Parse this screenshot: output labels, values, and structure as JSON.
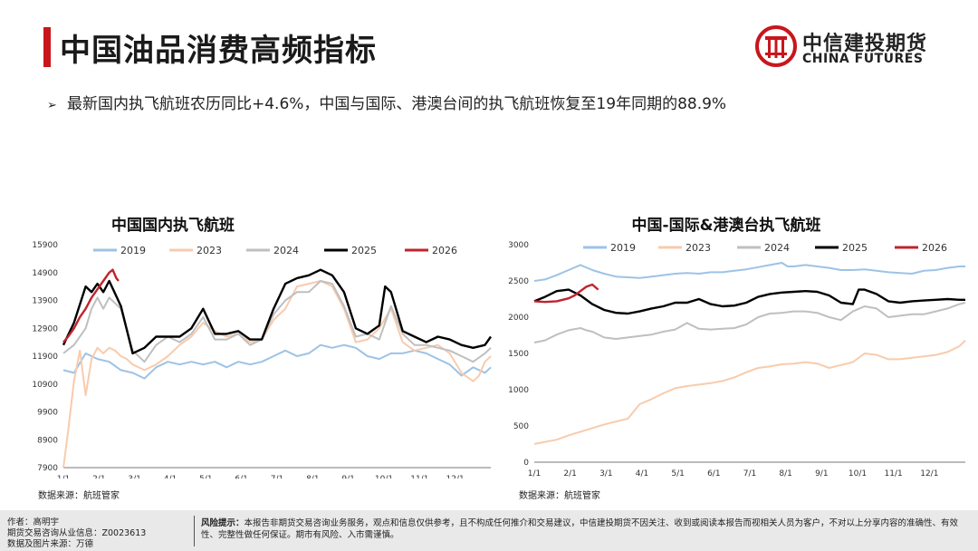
{
  "page": {
    "title": "中国油品消费高频指标",
    "bullet": "最新国内执飞航班农历同比+4.6%，中国与国际、港澳台间的执飞航班恢复至19年同期的88.9%"
  },
  "logo": {
    "cn": "中信建投期货",
    "en": "CHINA FUTURES"
  },
  "colors": {
    "accent": "#c8161d",
    "s2019": "#9dc3e6",
    "s2023": "#f8cbad",
    "s2024": "#bfbfbf",
    "s2025": "#000000",
    "s2026": "#c0232c"
  },
  "footer": {
    "author": "作者：高明宇",
    "license": "期货交易咨询从业信息：Z0023613",
    "source": "数据及图片来源：万德",
    "risk_label": "风险提示：",
    "risk_text": "本报告非期货交易咨询业务服务，观点和信息仅供参考，且不构成任何推介和交易建议，中信建投期货不因关注、收到或阅读本报告而视相关人员为客户，不对以上分享内容的准确性、有效性、完整性做任何保证。期市有风险、入市需谨慎。"
  },
  "chart_data": [
    {
      "type": "line",
      "title": "中国国内执飞航班",
      "source": "数据来源：航班管家",
      "ylim": [
        7900,
        15900
      ],
      "yticks": [
        "15900",
        "14900",
        "13900",
        "12900",
        "11900",
        "10900",
        "9900",
        "8900",
        "7900"
      ],
      "xticks": [
        "1/1",
        "2/1",
        "3/1",
        "4/1",
        "5/1",
        "6/1",
        "7/1",
        "8/1",
        "9/1",
        "10/1",
        "11/1",
        "12/1"
      ],
      "legend_position": "top",
      "series": [
        {
          "name": "2019",
          "x": [
            1,
            10,
            20,
            30,
            40,
            50,
            60,
            70,
            80,
            90,
            100,
            110,
            120,
            130,
            140,
            150,
            160,
            170,
            180,
            190,
            200,
            210,
            220,
            230,
            240,
            250,
            260,
            270,
            280,
            290,
            300,
            310,
            320,
            330,
            340,
            350,
            360,
            365
          ],
          "values": [
            11400,
            11300,
            12000,
            11800,
            11700,
            11400,
            11300,
            11100,
            11500,
            11700,
            11600,
            11700,
            11600,
            11700,
            11500,
            11700,
            11600,
            11700,
            11900,
            12100,
            11900,
            12000,
            12300,
            12200,
            12300,
            12200,
            11900,
            11800,
            12000,
            12000,
            12100,
            12000,
            11800,
            11600,
            11200,
            11500,
            11300,
            11500
          ]
        },
        {
          "name": "2023",
          "x": [
            1,
            5,
            10,
            15,
            20,
            25,
            30,
            35,
            40,
            45,
            50,
            55,
            60,
            70,
            80,
            90,
            100,
            110,
            120,
            130,
            140,
            150,
            160,
            170,
            180,
            190,
            200,
            210,
            220,
            230,
            240,
            250,
            260,
            270,
            280,
            290,
            300,
            310,
            320,
            330,
            340,
            350,
            355,
            360,
            365
          ],
          "values": [
            7900,
            9200,
            11000,
            12100,
            10500,
            11800,
            12200,
            12000,
            12200,
            12100,
            11900,
            11800,
            11600,
            11400,
            11600,
            11900,
            12300,
            12600,
            13100,
            12800,
            12600,
            12700,
            12400,
            12500,
            13200,
            13600,
            14400,
            14500,
            14600,
            14400,
            13600,
            12400,
            12500,
            12900,
            13600,
            12400,
            12100,
            12200,
            12300,
            12000,
            11300,
            11000,
            11200,
            11700,
            11900
          ]
        },
        {
          "name": "2024",
          "x": [
            1,
            10,
            20,
            25,
            30,
            35,
            40,
            50,
            60,
            70,
            80,
            90,
            100,
            110,
            120,
            130,
            140,
            150,
            160,
            170,
            180,
            190,
            200,
            210,
            220,
            230,
            240,
            250,
            260,
            270,
            280,
            290,
            300,
            310,
            320,
            330,
            340,
            350,
            360,
            365
          ],
          "values": [
            12000,
            12300,
            12900,
            13600,
            14000,
            13600,
            14000,
            13600,
            12100,
            11700,
            12300,
            12600,
            12400,
            12700,
            13300,
            12500,
            12500,
            12700,
            12300,
            12500,
            13400,
            13900,
            14200,
            14200,
            14600,
            14500,
            13700,
            12600,
            12700,
            12500,
            13700,
            12700,
            12300,
            12300,
            12200,
            12100,
            11900,
            11700,
            12000,
            12200
          ]
        },
        {
          "name": "2025",
          "x": [
            1,
            10,
            20,
            25,
            30,
            35,
            40,
            50,
            60,
            70,
            80,
            90,
            100,
            110,
            120,
            130,
            140,
            150,
            160,
            170,
            180,
            190,
            200,
            210,
            220,
            230,
            240,
            250,
            260,
            270,
            275,
            280,
            290,
            300,
            310,
            320,
            330,
            340,
            350,
            360,
            365
          ],
          "values": [
            12300,
            13100,
            14400,
            14200,
            14500,
            14200,
            14600,
            13700,
            12000,
            12200,
            12600,
            12600,
            12600,
            12900,
            13600,
            12700,
            12700,
            12800,
            12500,
            12500,
            13600,
            14500,
            14700,
            14800,
            15000,
            14800,
            14200,
            12900,
            12700,
            13000,
            14400,
            14200,
            12800,
            12600,
            12400,
            12600,
            12500,
            12300,
            12200,
            12300,
            12600
          ]
        },
        {
          "name": "2026",
          "x": [
            1,
            5,
            10,
            15,
            20,
            25,
            30,
            35,
            40,
            43,
            46,
            48
          ],
          "values": [
            12400,
            12600,
            12900,
            13300,
            13600,
            14000,
            14300,
            14600,
            14900,
            15000,
            14700,
            14600
          ]
        }
      ]
    },
    {
      "type": "line",
      "title": "中国-国际&港澳台执飞航班",
      "source": "数据来源：航班管家",
      "ylim": [
        0,
        3000
      ],
      "yticks": [
        "3000",
        "2500",
        "2000",
        "1500",
        "1000",
        "500",
        "0"
      ],
      "xticks": [
        "1/1",
        "2/1",
        "3/1",
        "4/1",
        "5/1",
        "6/1",
        "7/1",
        "8/1",
        "9/1",
        "10/1",
        "11/1",
        "12/1"
      ],
      "legend_position": "top",
      "series": [
        {
          "name": "2019",
          "x": [
            1,
            10,
            20,
            30,
            40,
            50,
            60,
            70,
            80,
            90,
            100,
            110,
            120,
            130,
            140,
            150,
            160,
            170,
            180,
            190,
            200,
            210,
            215,
            220,
            230,
            240,
            250,
            260,
            270,
            280,
            290,
            300,
            310,
            320,
            330,
            340,
            350,
            360,
            365
          ],
          "values": [
            2500,
            2520,
            2580,
            2650,
            2720,
            2650,
            2600,
            2560,
            2550,
            2540,
            2560,
            2580,
            2600,
            2610,
            2600,
            2620,
            2620,
            2640,
            2660,
            2690,
            2720,
            2750,
            2700,
            2700,
            2720,
            2700,
            2680,
            2650,
            2650,
            2660,
            2640,
            2620,
            2610,
            2600,
            2640,
            2650,
            2680,
            2700,
            2700
          ]
        },
        {
          "name": "2023",
          "x": [
            1,
            10,
            20,
            30,
            40,
            50,
            60,
            70,
            80,
            90,
            100,
            110,
            120,
            130,
            140,
            150,
            160,
            170,
            180,
            190,
            200,
            210,
            220,
            230,
            240,
            250,
            260,
            270,
            280,
            290,
            300,
            310,
            320,
            330,
            340,
            350,
            360,
            365
          ],
          "values": [
            250,
            280,
            310,
            370,
            420,
            470,
            520,
            560,
            600,
            800,
            870,
            950,
            1020,
            1050,
            1070,
            1090,
            1120,
            1170,
            1240,
            1300,
            1320,
            1350,
            1360,
            1380,
            1360,
            1300,
            1340,
            1380,
            1500,
            1480,
            1420,
            1420,
            1440,
            1460,
            1480,
            1520,
            1600,
            1680
          ]
        },
        {
          "name": "2024",
          "x": [
            1,
            10,
            20,
            30,
            40,
            45,
            50,
            60,
            70,
            80,
            90,
            100,
            110,
            120,
            130,
            140,
            150,
            160,
            170,
            180,
            190,
            200,
            210,
            220,
            230,
            240,
            250,
            260,
            270,
            280,
            290,
            300,
            310,
            320,
            330,
            340,
            350,
            360,
            365
          ],
          "values": [
            1650,
            1680,
            1760,
            1820,
            1850,
            1820,
            1800,
            1720,
            1700,
            1720,
            1740,
            1760,
            1800,
            1830,
            1920,
            1840,
            1830,
            1840,
            1850,
            1900,
            2000,
            2050,
            2060,
            2080,
            2080,
            2060,
            2000,
            1960,
            2080,
            2150,
            2120,
            2000,
            2020,
            2040,
            2040,
            2080,
            2120,
            2180,
            2200
          ]
        },
        {
          "name": "2025",
          "x": [
            1,
            10,
            20,
            30,
            40,
            50,
            60,
            70,
            80,
            90,
            100,
            110,
            120,
            130,
            140,
            150,
            160,
            170,
            180,
            190,
            200,
            210,
            220,
            230,
            240,
            250,
            260,
            270,
            275,
            280,
            290,
            300,
            310,
            320,
            330,
            340,
            350,
            360,
            365
          ],
          "values": [
            2220,
            2280,
            2360,
            2380,
            2300,
            2180,
            2100,
            2060,
            2050,
            2080,
            2120,
            2150,
            2200,
            2200,
            2250,
            2180,
            2150,
            2160,
            2200,
            2280,
            2320,
            2340,
            2350,
            2360,
            2350,
            2300,
            2200,
            2180,
            2380,
            2380,
            2320,
            2220,
            2200,
            2220,
            2230,
            2240,
            2250,
            2240,
            2240
          ]
        },
        {
          "name": "2026",
          "x": [
            1,
            10,
            20,
            30,
            35,
            40,
            45,
            50,
            55
          ],
          "values": [
            2220,
            2210,
            2220,
            2260,
            2300,
            2360,
            2420,
            2450,
            2380
          ]
        }
      ]
    }
  ]
}
